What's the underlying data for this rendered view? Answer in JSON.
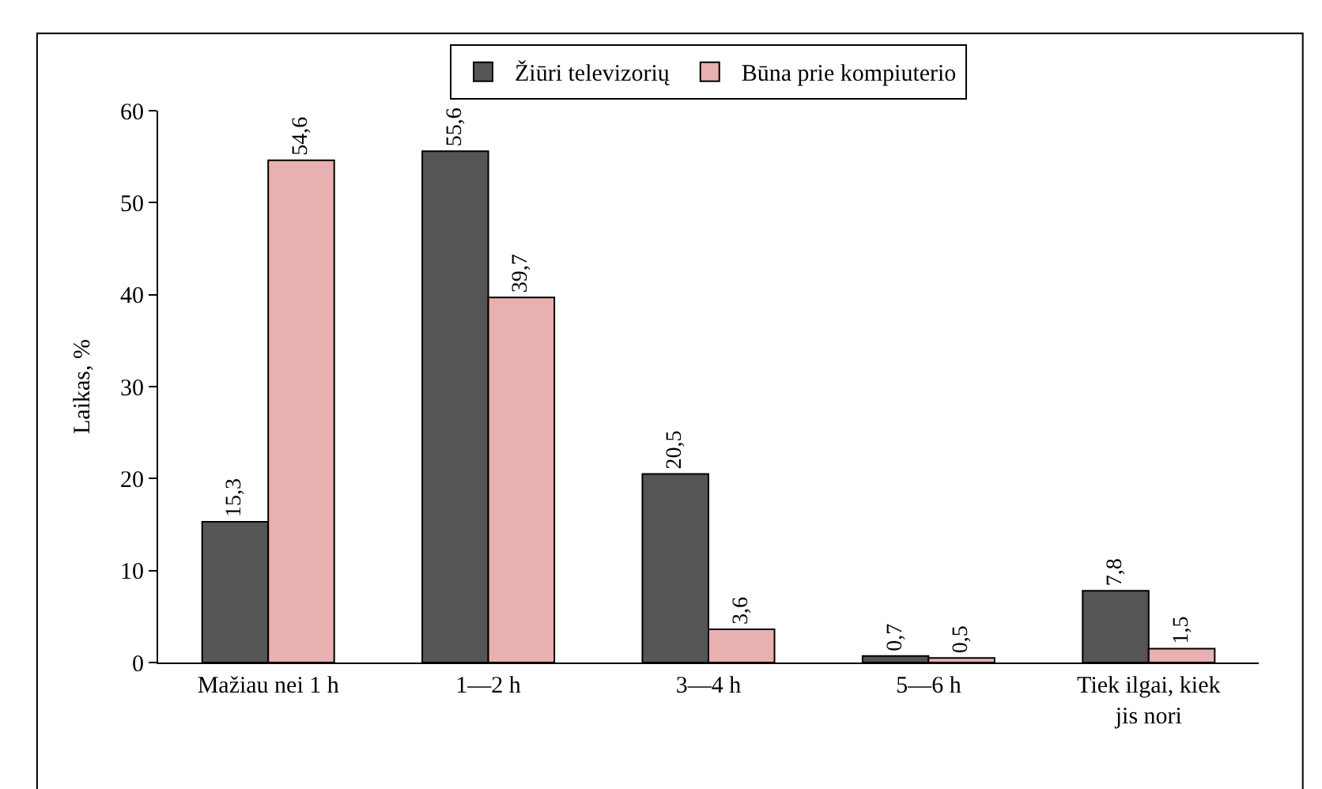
{
  "chart_data": {
    "type": "bar",
    "ylabel": "Laikas, %",
    "categories": [
      "Mažiau nei 1 h",
      "1—2 h",
      "3—4 h",
      "5—6 h",
      "Tiek ilgai, kiek jis nori"
    ],
    "series": [
      {
        "name": "Žiūri televizorių",
        "color": "#555555",
        "values": [
          15.3,
          55.6,
          20.5,
          0.7,
          7.8
        ],
        "value_labels": [
          "15,3",
          "55,6",
          "20,5",
          "0,7",
          "7,8"
        ]
      },
      {
        "name": "Būna prie kompiuterio",
        "color": "#e8b0b0",
        "values": [
          54.6,
          39.7,
          3.6,
          0.5,
          1.5
        ],
        "value_labels": [
          "54,6",
          "39,7",
          "3,6",
          "0,5",
          "1,5"
        ]
      }
    ],
    "ylim": [
      0,
      60
    ],
    "yticks": [
      0,
      10,
      20,
      30,
      40,
      50,
      60
    ],
    "legend": "top"
  }
}
